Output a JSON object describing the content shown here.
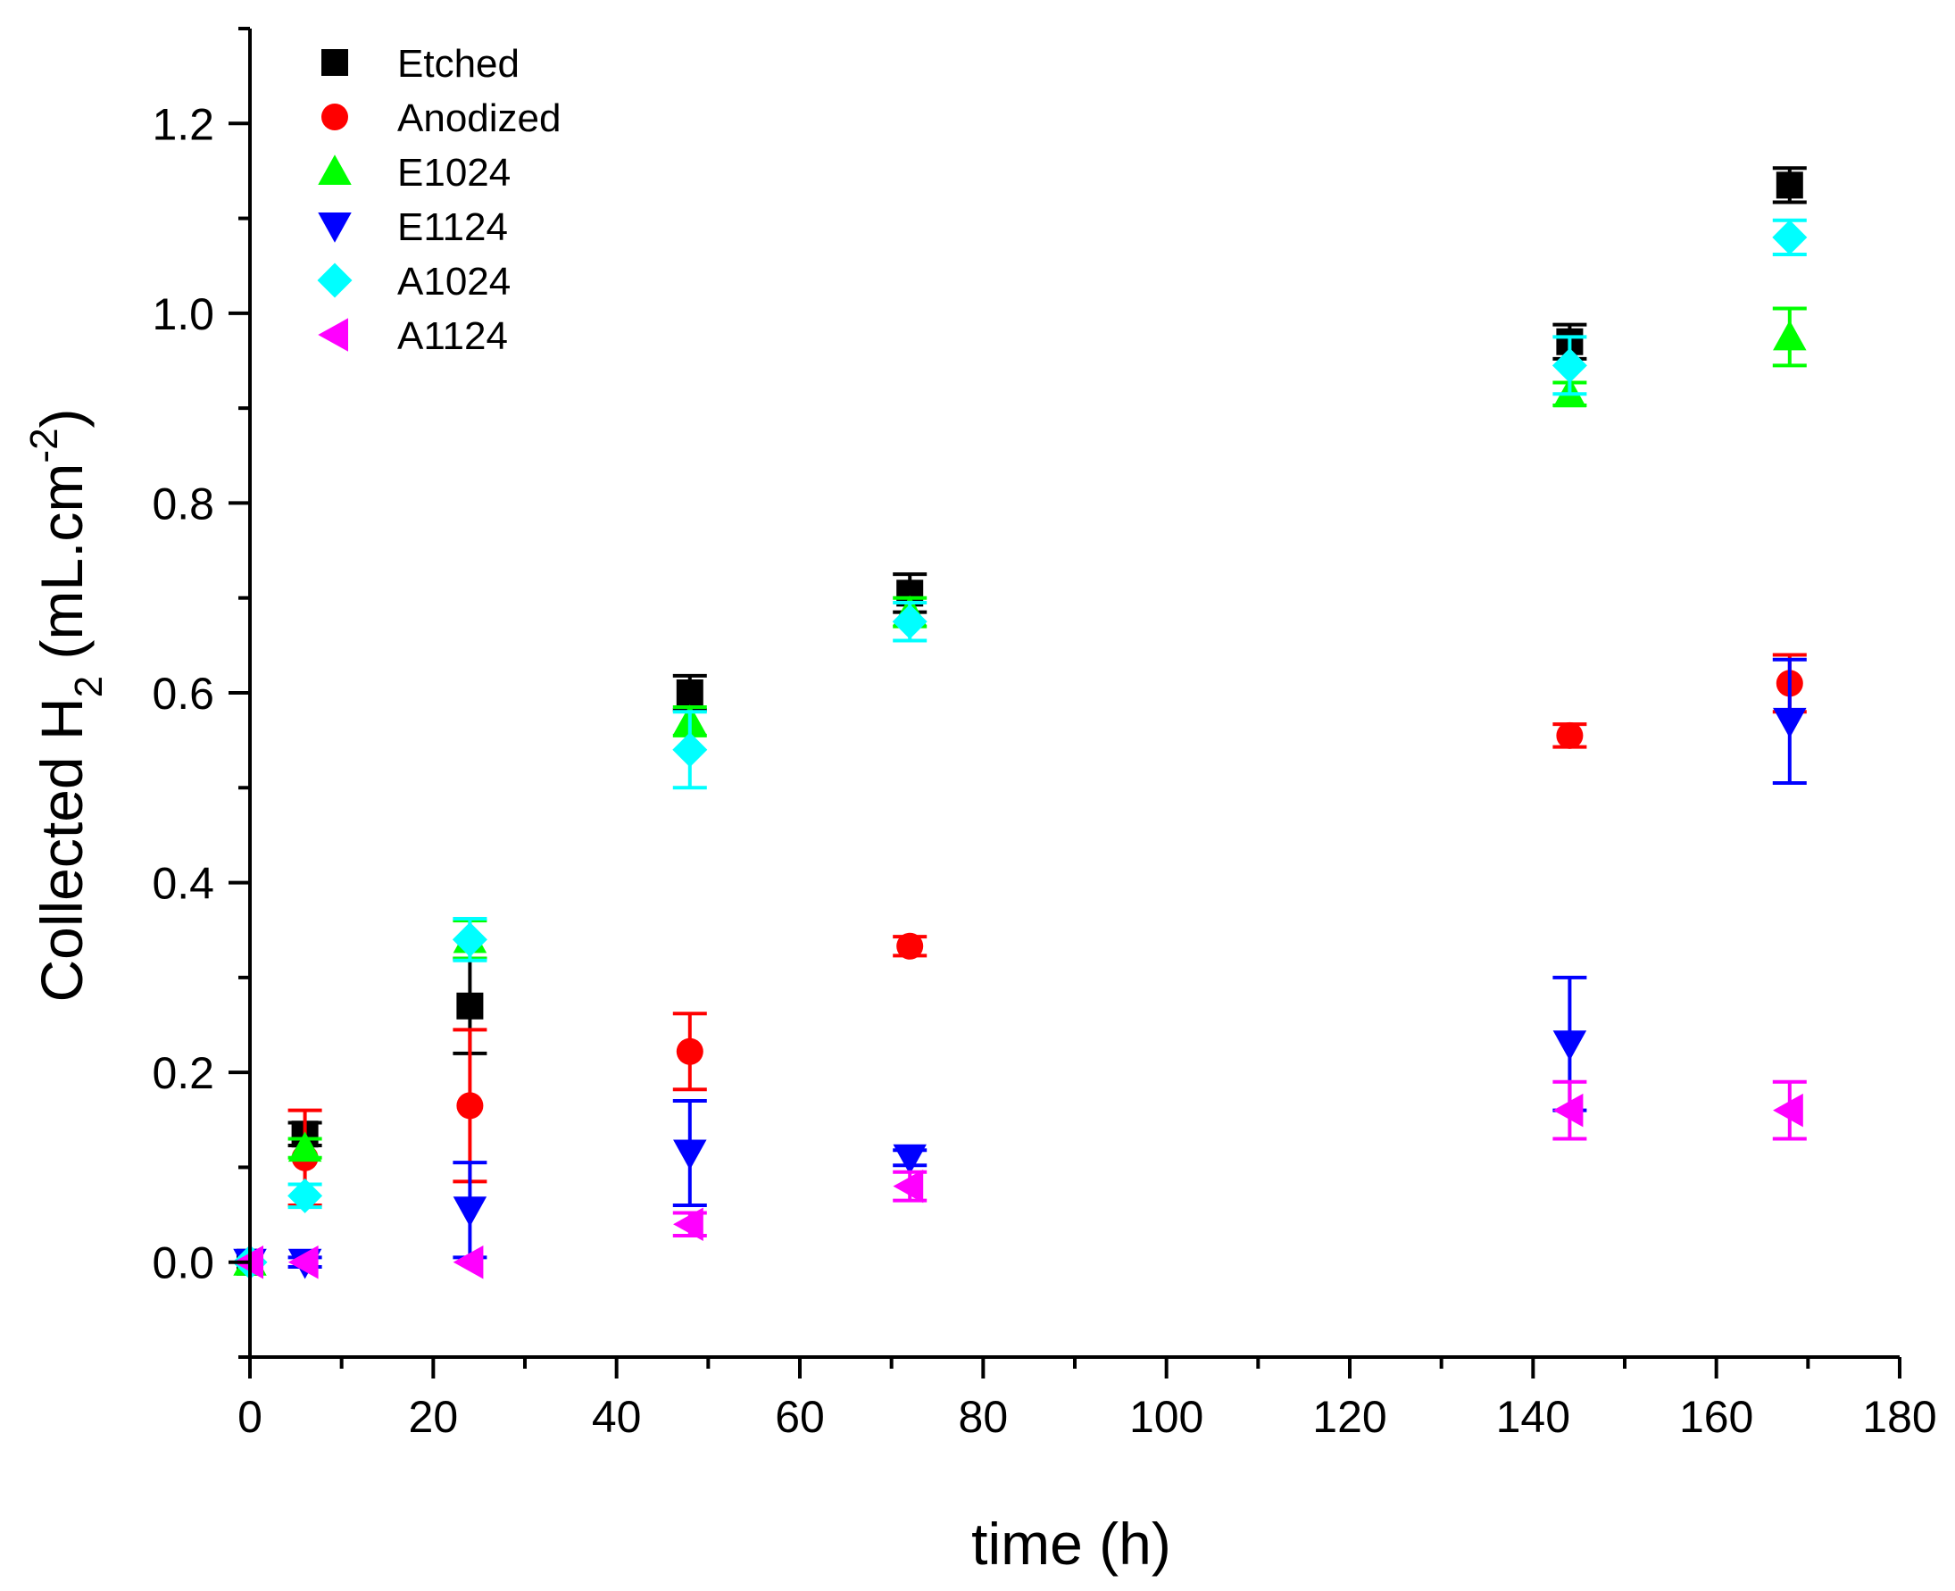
{
  "chart_data": {
    "type": "scatter",
    "title": "",
    "xlabel": "time (h)",
    "ylabel_parts": {
      "prefix": "Collected H",
      "subscript": "2",
      "middle": " (mL.cm",
      "superscript": "-2",
      "suffix": ")"
    },
    "xlim": [
      0,
      180
    ],
    "ylim": [
      -0.1,
      1.3
    ],
    "x_ticks": [
      0,
      20,
      40,
      60,
      80,
      100,
      120,
      140,
      160,
      180
    ],
    "y_ticks": [
      0.0,
      0.2,
      0.4,
      0.6,
      0.8,
      1.0,
      1.2
    ],
    "x_tick_labels": [
      "0",
      "20",
      "40",
      "60",
      "80",
      "100",
      "120",
      "140",
      "160",
      "180"
    ],
    "y_tick_labels": [
      "0.0",
      "0.2",
      "0.4",
      "0.6",
      "0.8",
      "1.0",
      "1.2"
    ],
    "legend_position": "top-left",
    "grid": false,
    "series": [
      {
        "name": "Etched",
        "marker": "square",
        "color": "#000000",
        "x": [
          0,
          6,
          24,
          48,
          72,
          144,
          168
        ],
        "y": [
          0.0,
          0.135,
          0.27,
          0.6,
          0.705,
          0.97,
          1.135
        ],
        "err": [
          0.0,
          0.012,
          0.05,
          0.018,
          0.02,
          0.018,
          0.018
        ]
      },
      {
        "name": "Anodized",
        "marker": "circle",
        "color": "#ff0000",
        "x": [
          0,
          6,
          24,
          48,
          72,
          144,
          168
        ],
        "y": [
          0.0,
          0.11,
          0.165,
          0.222,
          0.333,
          0.555,
          0.61
        ],
        "err": [
          0.0,
          0.05,
          0.08,
          0.04,
          0.01,
          0.012,
          0.03
        ]
      },
      {
        "name": "E1024",
        "marker": "triangle-up",
        "color": "#00ff00",
        "x": [
          0,
          6,
          24,
          48,
          72,
          144,
          168
        ],
        "y": [
          0.0,
          0.12,
          0.34,
          0.57,
          0.685,
          0.915,
          0.975
        ],
        "err": [
          0.0,
          0.01,
          0.02,
          0.015,
          0.015,
          0.012,
          0.03
        ]
      },
      {
        "name": "E1124",
        "marker": "triangle-down",
        "color": "#0000ff",
        "x": [
          0,
          6,
          24,
          48,
          72,
          144,
          168
        ],
        "y": [
          0.0,
          0.0,
          0.055,
          0.115,
          0.11,
          0.23,
          0.57
        ],
        "err": [
          0.0,
          0.005,
          0.05,
          0.055,
          0.008,
          0.07,
          0.065
        ]
      },
      {
        "name": "A1024",
        "marker": "diamond",
        "color": "#00ffff",
        "x": [
          0,
          6,
          24,
          48,
          72,
          144,
          168
        ],
        "y": [
          0.0,
          0.07,
          0.34,
          0.54,
          0.675,
          0.945,
          1.08
        ],
        "err": [
          0.0,
          0.012,
          0.022,
          0.04,
          0.02,
          0.03,
          0.018
        ]
      },
      {
        "name": "A1124",
        "marker": "triangle-left",
        "color": "#ff00ff",
        "x": [
          0,
          6,
          24,
          48,
          72,
          144,
          168
        ],
        "y": [
          0.0,
          0.0,
          0.0,
          0.04,
          0.08,
          0.16,
          0.16
        ],
        "err": [
          0.0,
          0.0,
          0.0,
          0.012,
          0.015,
          0.03,
          0.03
        ]
      }
    ]
  }
}
